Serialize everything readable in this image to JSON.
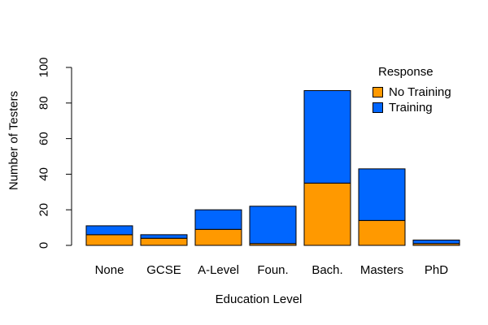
{
  "chart_data": {
    "type": "bar",
    "stacked": true,
    "title": "",
    "xlabel": "Education Level",
    "ylabel": "Number of Testers",
    "categories": [
      "None",
      "GCSE",
      "A-Level",
      "Foun.",
      "Bach.",
      "Masters",
      "PhD"
    ],
    "series": [
      {
        "name": "No Training",
        "color": "#FF9900",
        "values": [
          6,
          4,
          9,
          1,
          35,
          14,
          1
        ]
      },
      {
        "name": "Training",
        "color": "#0066FF",
        "values": [
          5,
          2,
          11,
          21,
          52,
          29,
          2
        ]
      }
    ],
    "ylim": [
      0,
      100
    ],
    "yticks": [
      0,
      20,
      40,
      60,
      80,
      100
    ],
    "grid": false,
    "legend": {
      "title": "Response",
      "position": "top-right"
    },
    "axis_color": "#000000",
    "bar_border_color": "#000000"
  }
}
